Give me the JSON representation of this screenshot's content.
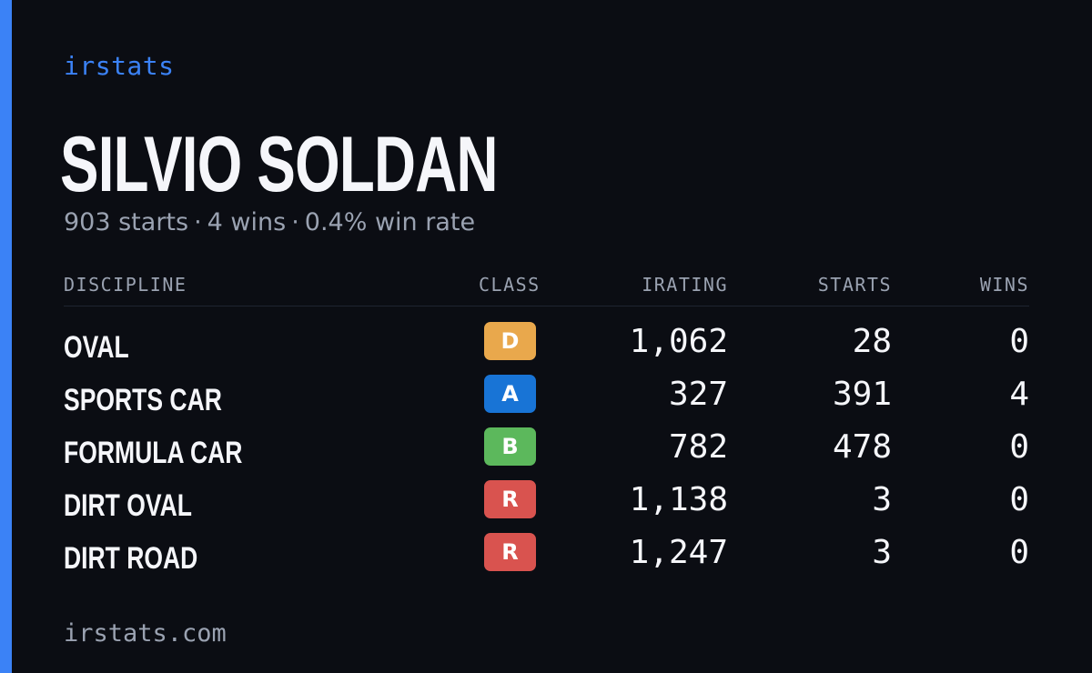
{
  "brand": "irstats",
  "driver": {
    "name": "SILVIO SOLDAN"
  },
  "summary": {
    "starts": "903 starts",
    "wins": "4 wins",
    "win_rate": "0.4% win rate",
    "separator": "·"
  },
  "table": {
    "headers": {
      "discipline": "DISCIPLINE",
      "class": "CLASS",
      "irating": "IRATING",
      "starts": "STARTS",
      "wins": "WINS"
    },
    "rows": [
      {
        "discipline": "OVAL",
        "class": "D",
        "class_color": "#e9a84c",
        "irating": "1,062",
        "starts": "28",
        "wins": "0"
      },
      {
        "discipline": "SPORTS CAR",
        "class": "A",
        "class_color": "#1874d6",
        "irating": "327",
        "starts": "391",
        "wins": "4"
      },
      {
        "discipline": "FORMULA CAR",
        "class": "B",
        "class_color": "#5cb85c",
        "irating": "782",
        "starts": "478",
        "wins": "0"
      },
      {
        "discipline": "DIRT OVAL",
        "class": "R",
        "class_color": "#d9534f",
        "irating": "1,138",
        "starts": "3",
        "wins": "0"
      },
      {
        "discipline": "DIRT ROAD",
        "class": "R",
        "class_color": "#d9534f",
        "irating": "1,247",
        "starts": "3",
        "wins": "0"
      }
    ]
  },
  "footer": {
    "url": "irstats.com"
  },
  "colors": {
    "accent": "#3b82f6",
    "background": "#0b0d13",
    "text_primary": "#f5f6fa",
    "text_muted": "#9aa2b1"
  }
}
